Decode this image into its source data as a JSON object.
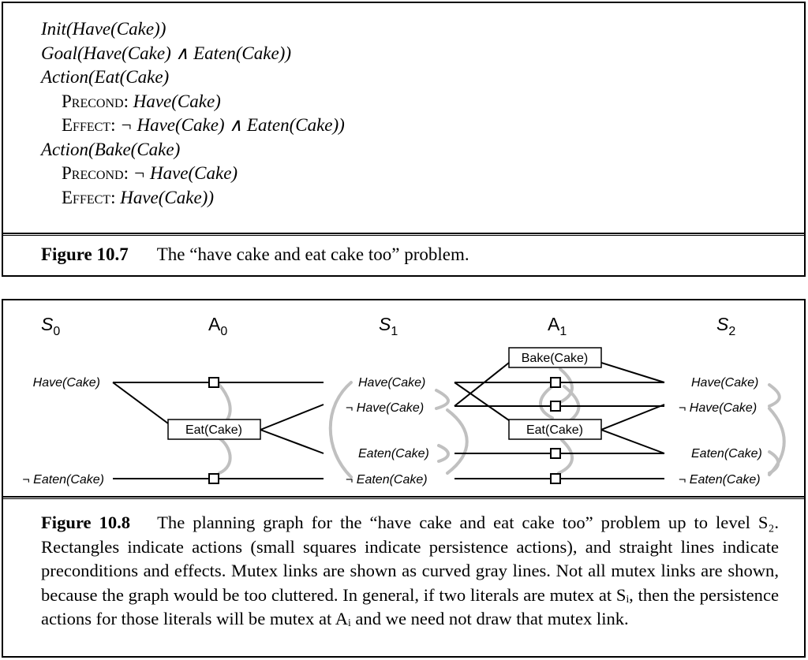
{
  "fig107": {
    "lines": [
      {
        "text": "Init(Have(Cake))"
      },
      {
        "text": "Goal(Have(Cake) ∧ Eaten(Cake))"
      },
      {
        "text": "Action(Eat(Cake)"
      },
      {
        "kw": "Precond:",
        "text": " Have(Cake)"
      },
      {
        "kw": "Effect:",
        "text": " ¬ Have(Cake) ∧ Eaten(Cake))"
      },
      {
        "text": "Action(Bake(Cake)"
      },
      {
        "kw": "Precond:",
        "text": " ¬ Have(Cake)"
      },
      {
        "kw": "Effect:",
        "text": " Have(Cake))"
      }
    ],
    "caption_label": "Figure 10.7",
    "caption_text": "The “have cake and eat cake too” problem."
  },
  "fig108": {
    "headers": {
      "s0": "S",
      "s0_sub": "0",
      "a0": "A",
      "a0_sub": "0",
      "s1": "S",
      "s1_sub": "1",
      "a1": "A",
      "a1_sub": "1",
      "s2": "S",
      "s2_sub": "2"
    },
    "s0": [
      "Have(Cake)",
      "¬ Eaten(Cake)"
    ],
    "s1": [
      "Have(Cake)",
      "¬ Have(Cake)",
      "Eaten(Cake)",
      "¬ Eaten(Cake)"
    ],
    "s2": [
      "Have(Cake)",
      "¬ Have(Cake)",
      "Eaten(Cake)",
      "¬ Eaten(Cake)"
    ],
    "actions": {
      "eat0": "Eat(Cake)",
      "bake1": "Bake(Cake)",
      "eat1": "Eat(Cake)"
    },
    "caption_label": "Figure 10.8",
    "caption_text": "The planning graph for the “have cake and eat cake too” problem up to level S₂. Rectangles indicate actions (small squares indicate persistence actions), and straight lines indicate preconditions and effects. Mutex links are shown as curved gray lines. Not all mutex links are shown, because the graph would be too cluttered. In general, if two literals are mutex at Sᵢ, then the persistence actions for those literals will be mutex at Aᵢ and we need not draw that mutex link."
  },
  "colors": {
    "mutex": "#c0c0c0",
    "ink": "#000000"
  }
}
